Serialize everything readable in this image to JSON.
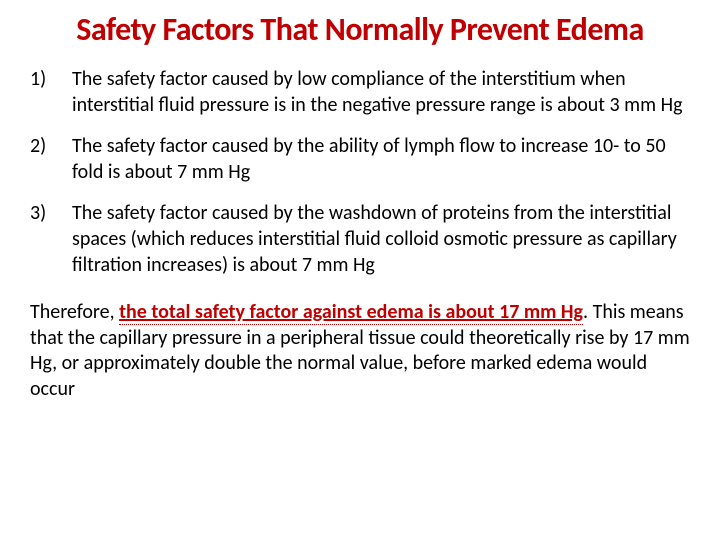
{
  "title": "Safety Factors That Normally Prevent Edema",
  "title_color": "#c00000",
  "title_fontsize": 32,
  "body_fontsize": 20,
  "text_color": "#000000",
  "background_color": "#ffffff",
  "highlight_color": "#c00000",
  "items": [
    "The safety factor caused by low compliance of the interstitium when interstitial fluid pressure is in the negative pressure range is about 3 mm Hg",
    "The safety factor caused by the ability of lymph flow to increase 10- to 50 fold is about 7 mm Hg",
    "The safety factor caused by the washdown of proteins from the interstitial spaces (which reduces interstitial fluid colloid osmotic pressure as capillary filtration increases) is about 7 mm Hg"
  ],
  "conclusion_pre": "Therefore, ",
  "conclusion_bold": "the total safety factor against edema is about 17 mm Hg",
  "conclusion_post": ". This means that the capillary pressure in a peripheral tissue could theoretically rise by 17 mm Hg, or approximately double the normal value, before marked edema would occur"
}
